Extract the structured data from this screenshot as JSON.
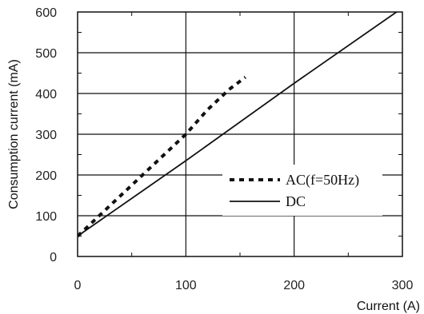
{
  "chart_data": {
    "type": "line",
    "title": "",
    "xlabel": "Current (A)",
    "ylabel": "Consumption current (mA)",
    "xlim": [
      0,
      300
    ],
    "ylim": [
      0,
      600
    ],
    "x_ticks": [
      0,
      100,
      200,
      300
    ],
    "y_ticks": [
      0,
      100,
      200,
      300,
      400,
      500,
      600
    ],
    "grid": true,
    "legend_position": "right",
    "series": [
      {
        "name": "AC(f=50Hz)",
        "style": "dotted",
        "color": "#111111",
        "x": [
          0,
          20,
          40,
          60,
          80,
          100,
          120,
          140,
          155
        ],
        "y": [
          50,
          100,
          150,
          200,
          250,
          300,
          360,
          410,
          440
        ]
      },
      {
        "name": "DC",
        "style": "solid",
        "color": "#111111",
        "x": [
          0,
          100,
          200,
          300
        ],
        "y": [
          50,
          235,
          425,
          610
        ]
      }
    ]
  }
}
